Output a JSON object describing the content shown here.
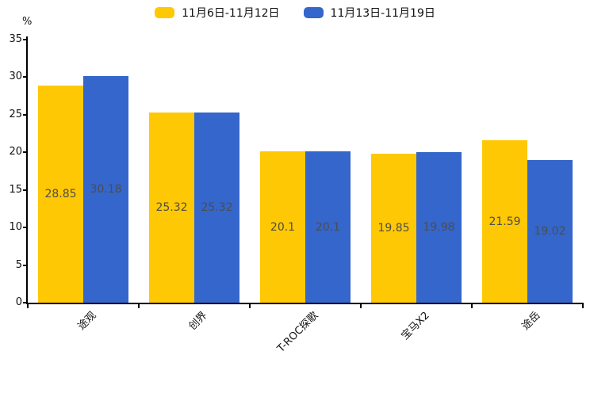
{
  "legend": {
    "items": [
      {
        "label": "11月6日-11月12日",
        "color": "#FEC804"
      },
      {
        "label": "11月13日-11月19日",
        "color": "#3466CB"
      }
    ]
  },
  "chart_data": {
    "type": "bar",
    "title": "",
    "categories": [
      "途观",
      "创界",
      "T-ROC探歌",
      "宝马X2",
      "途岳"
    ],
    "series": [
      {
        "name": "11月6日-11月12日",
        "color": "#FEC804",
        "values": [
          28.85,
          25.32,
          20.1,
          19.85,
          21.59
        ]
      },
      {
        "name": "11月13日-11月19日",
        "color": "#3466CB",
        "values": [
          30.18,
          25.32,
          20.1,
          19.98,
          19.02
        ]
      }
    ],
    "xlabel": "",
    "ylabel": "%",
    "ylim": [
      0,
      35
    ],
    "yticks": [
      0,
      5,
      10,
      15,
      20,
      25,
      30,
      35
    ],
    "grid": false,
    "legend_position": "top",
    "value_labels": true,
    "bar_label_color": "#4d4d4d",
    "axis_color": "#000000"
  }
}
